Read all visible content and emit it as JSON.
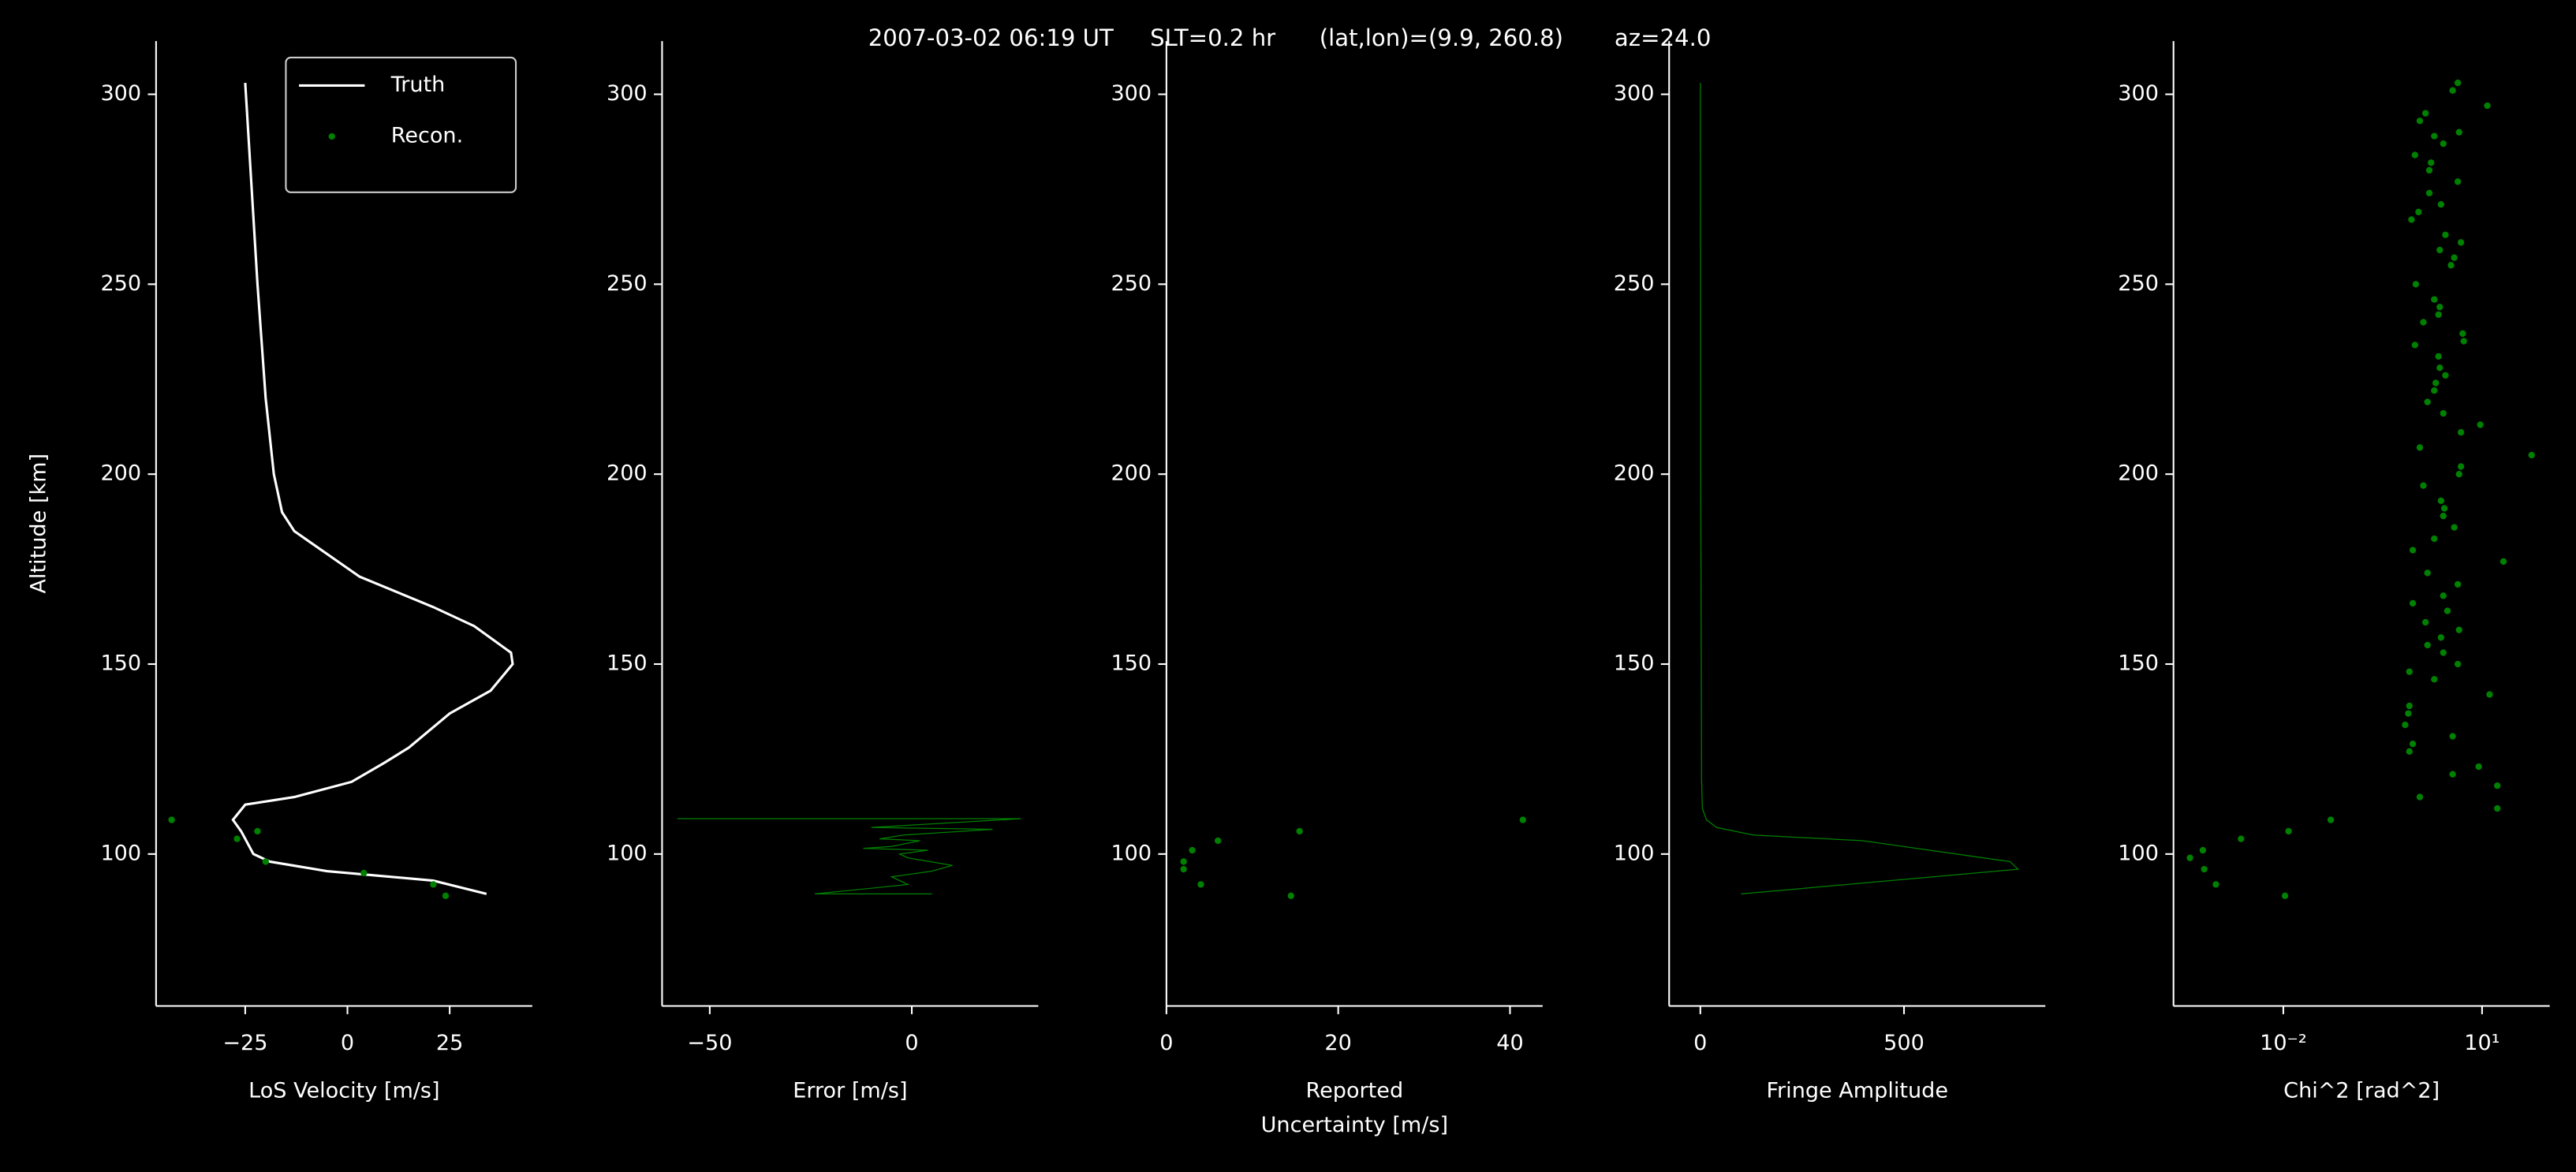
{
  "title": "2007-03-02 06:19 UT     SLT=0.2 hr      (lat,lon)=(9.9, 260.8)       az=24.0",
  "chart_data": [
    {
      "type": "line",
      "ylabel": "Altitude [km]",
      "xlabel": [
        "LoS Velocity [m/s]"
      ],
      "xlim": [
        -46.8,
        45.2
      ],
      "ylim": [
        60,
        314
      ],
      "xticks": [
        {
          "value": -25,
          "label": "−25"
        },
        0,
        25
      ],
      "yticks": [
        100,
        150,
        200,
        250,
        300
      ],
      "legend": "upper right",
      "series": [
        {
          "name": "Truth",
          "type": "line",
          "color": "#ffffff",
          "y": [
            303,
            250,
            220,
            200,
            190,
            185,
            173,
            165,
            160,
            153,
            150,
            143,
            137,
            128,
            124,
            119,
            115,
            113,
            109,
            106,
            100,
            98,
            95.5,
            93,
            89.5
          ],
          "x": [
            -25,
            -22,
            -20,
            -18,
            -16,
            -13,
            3,
            21,
            31,
            40,
            40.4,
            35,
            25,
            15,
            9,
            1,
            -13,
            -25,
            -28,
            -26,
            -23,
            -19,
            -5,
            21,
            34
          ]
        },
        {
          "name": "Recon.",
          "type": "scatter",
          "color": "#008000",
          "y": [
            109,
            104,
            106,
            98,
            95,
            92,
            89
          ],
          "x": [
            -43,
            -27,
            -22,
            -20,
            4,
            21,
            24
          ]
        }
      ]
    },
    {
      "type": "line",
      "xlabel": [
        "Error [m/s]"
      ],
      "xlim": [
        -61.8,
        31.3
      ],
      "ylim": [
        60,
        314
      ],
      "xticks": [
        {
          "value": -50,
          "label": "−50"
        },
        0
      ],
      "yticks": [
        100,
        150,
        200,
        250,
        300
      ],
      "series": [
        {
          "type": "line",
          "color": "#008000",
          "y": [
            109.3,
            109.3,
            107,
            106.5,
            105,
            104,
            103.5,
            102,
            101.5,
            101,
            100,
            99.5,
            99,
            97,
            95.5,
            94,
            92,
            91,
            89.5,
            89.5
          ],
          "x": [
            -58,
            27,
            -10,
            20,
            -2,
            -8,
            2,
            -5,
            -12,
            4,
            -3,
            -2,
            -1,
            10,
            5,
            -5,
            -1,
            -10,
            -24,
            5
          ]
        }
      ]
    },
    {
      "type": "scatter",
      "xlabel": [
        "Reported",
        "Uncertainty [m/s]"
      ],
      "xlim": [
        0,
        43.8
      ],
      "ylim": [
        60,
        314
      ],
      "xticks": [
        0,
        20,
        40
      ],
      "yticks": [
        100,
        150,
        200,
        250,
        300
      ],
      "series": [
        {
          "type": "scatter",
          "color": "#008000",
          "y": [
            109,
            106,
            103.5,
            101,
            98,
            96,
            92,
            89
          ],
          "x": [
            41.5,
            15.5,
            6,
            3,
            2,
            2,
            4,
            14.5
          ]
        }
      ]
    },
    {
      "type": "line",
      "xlabel": [
        "Fringe Amplitude"
      ],
      "xlim": [
        -76.6,
        847
      ],
      "ylim": [
        60,
        314
      ],
      "xticks": [
        0,
        500
      ],
      "yticks": [
        100,
        150,
        200,
        250,
        300
      ],
      "series": [
        {
          "type": "line",
          "color": "#008000",
          "y": [
            303,
            200,
            120,
            112,
            109,
            107,
            105,
            103.5,
            98,
            96,
            89.5
          ],
          "x": [
            0,
            1,
            3,
            5,
            15,
            40,
            130,
            400,
            760,
            780,
            100
          ]
        }
      ]
    },
    {
      "type": "scatter",
      "xlabel": [
        "Chi^2 [rad^2]"
      ],
      "xscale": "log",
      "xlim": [
        0.00022,
        105
      ],
      "ylim": [
        60,
        314
      ],
      "xticks": [
        {
          "value": 0.01,
          "label": "10⁻²"
        },
        {
          "value": 10,
          "label": "10¹"
        }
      ],
      "yticks": [
        100,
        150,
        200,
        250,
        300
      ],
      "series": [
        {
          "type": "scatter",
          "color": "#008000",
          "y": [
            303,
            301,
            297,
            295,
            293,
            290,
            289,
            287,
            284,
            282,
            280,
            277,
            274,
            271,
            269,
            267,
            263,
            261,
            259,
            257,
            255,
            250,
            246,
            244,
            242,
            240,
            237,
            235,
            234,
            231,
            228,
            226,
            224,
            222,
            219,
            216,
            213,
            211,
            207,
            205,
            202,
            200,
            197,
            193,
            191,
            189,
            186,
            183,
            180,
            177,
            174,
            171,
            168,
            166,
            164,
            161,
            159,
            157,
            155,
            153,
            150,
            148,
            146,
            142,
            139,
            137,
            134,
            131,
            129,
            127,
            123,
            121,
            118,
            115,
            112,
            109,
            106,
            104,
            101,
            99,
            96,
            92,
            89
          ],
          "x": [
            4.3,
            3.6,
            12,
            1.4,
            1.15,
            4.5,
            1.9,
            2.6,
            0.97,
            1.7,
            1.6,
            4.3,
            1.6,
            2.4,
            1.1,
            0.86,
            2.8,
            4.8,
            2.3,
            3.8,
            3.4,
            1.0,
            1.9,
            2.3,
            2.2,
            1.3,
            5.1,
            5.3,
            0.97,
            2.2,
            2.3,
            2.8,
            2.0,
            1.9,
            1.5,
            2.6,
            9.4,
            4.8,
            1.15,
            56,
            4.8,
            4.5,
            1.3,
            2.4,
            2.7,
            2.6,
            3.8,
            1.9,
            0.9,
            21,
            1.5,
            4.3,
            2.6,
            0.9,
            3.0,
            1.4,
            4.5,
            2.4,
            1.5,
            2.6,
            4.3,
            0.8,
            1.9,
            13,
            0.8,
            0.77,
            0.69,
            3.6,
            0.9,
            0.8,
            8.9,
            3.6,
            17,
            1.15,
            17,
            0.052,
            0.012,
            0.0023,
            0.00061,
            0.00039,
            0.00064,
            0.00096,
            0.0106
          ]
        }
      ]
    }
  ]
}
